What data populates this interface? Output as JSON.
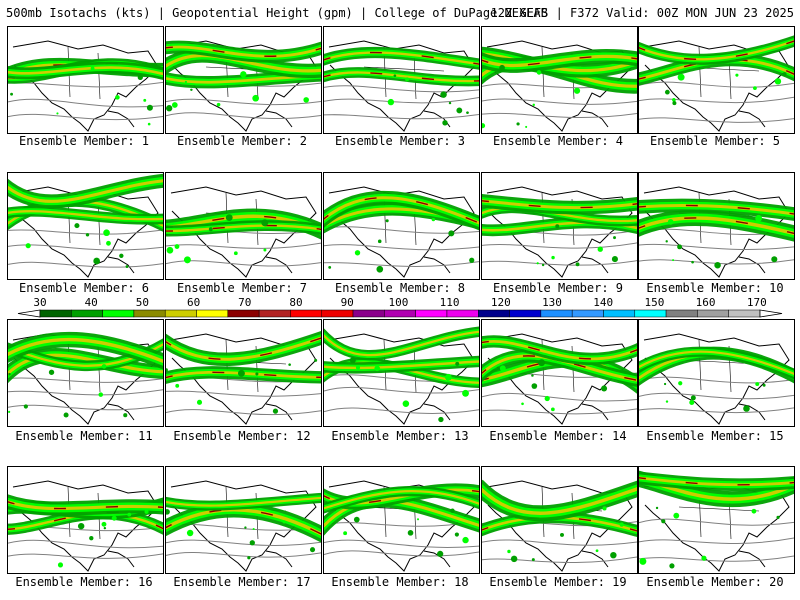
{
  "header": {
    "left": "500mb Isotachs (kts) | Geopotential Height (gpm) | College of DuPage NEXLAB",
    "right": "12Z GEFS | F372 Valid: 00Z MON JUN 23 2025"
  },
  "members": [
    "Ensemble Member: 1",
    "Ensemble Member: 2",
    "Ensemble Member: 3",
    "Ensemble Member: 4",
    "Ensemble Member: 5",
    "Ensemble Member: 6",
    "Ensemble Member: 7",
    "Ensemble Member: 8",
    "Ensemble Member: 9",
    "Ensemble Member: 10",
    "Ensemble Member: 11",
    "Ensemble Member: 12",
    "Ensemble Member: 13",
    "Ensemble Member: 14",
    "Ensemble Member: 15",
    "Ensemble Member: 16",
    "Ensemble Member: 17",
    "Ensemble Member: 18",
    "Ensemble Member: 19",
    "Ensemble Member: 20"
  ],
  "colorbar": {
    "labels": [
      "30",
      "40",
      "50",
      "60",
      "70",
      "80",
      "90",
      "100",
      "110",
      "120",
      "130",
      "140",
      "150",
      "160",
      "170"
    ],
    "colors": [
      "#006400",
      "#00a000",
      "#00ff00",
      "#8b8b00",
      "#cdcd00",
      "#ffff00",
      "#8b0000",
      "#b22222",
      "#ff0000",
      "#ee0000",
      "#8b008b",
      "#b000b0",
      "#ff00ff",
      "#ee00ee",
      "#00008b",
      "#0000cd",
      "#1e90ff",
      "#3399ff",
      "#00bfff",
      "#00ffff",
      "#808080",
      "#a0a0a0",
      "#c0c0c0"
    ]
  },
  "styles": {
    "speed_colors": [
      "#00a000",
      "#00ff00",
      "#8b8b00",
      "#cdcd00",
      "#8b0000"
    ],
    "height_contour": "#808080",
    "coastline": "#000000"
  }
}
